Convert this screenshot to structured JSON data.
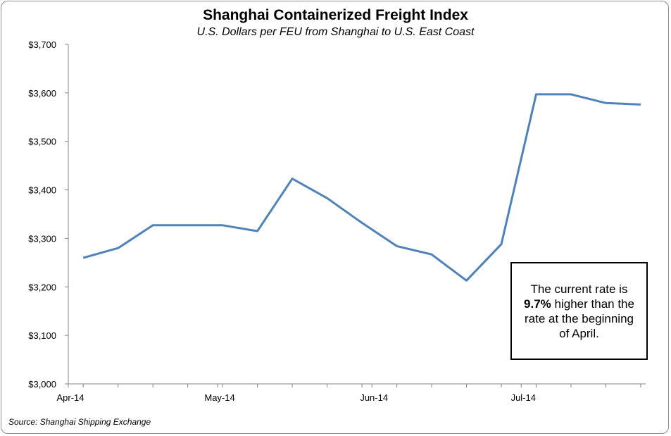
{
  "chart_data": {
    "type": "line",
    "title": "Shanghai Containerized Freight Index",
    "subtitle": "U.S. Dollars per FEU from Shanghai to U.S. East Coast",
    "source": "Source: Shanghai Shipping Exchange",
    "ylim": [
      3000,
      3700
    ],
    "y_ticks": [
      3000,
      3100,
      3200,
      3300,
      3400,
      3500,
      3600,
      3700
    ],
    "y_tick_labels": [
      "$3,000",
      "$3,100",
      "$3,200",
      "$3,300",
      "$3,400",
      "$3,500",
      "$3,600",
      "$3,700"
    ],
    "x_tick_labels": [
      "Apr-14",
      "May-14",
      "Jun-14",
      "Jul-14"
    ],
    "series": [
      {
        "color": "#4f81bd",
        "x": [
          "2014-04-04",
          "2014-04-11",
          "2014-04-18",
          "2014-04-25",
          "2014-05-02",
          "2014-05-09",
          "2014-05-16",
          "2014-05-23",
          "2014-05-30",
          "2014-06-06",
          "2014-06-13",
          "2014-06-20",
          "2014-06-27",
          "2014-07-04",
          "2014-07-11",
          "2014-07-18",
          "2014-07-25"
        ],
        "values": [
          3260,
          3280,
          3327,
          3327,
          3327,
          3315,
          3423,
          3383,
          3332,
          3284,
          3267,
          3213,
          3288,
          3597,
          3597,
          3579,
          3576
        ]
      }
    ],
    "grid": false,
    "annotation": {
      "before": "The current rate is",
      "highlight": "9.7%",
      "after": "higher than the rate at the beginning of April."
    }
  }
}
